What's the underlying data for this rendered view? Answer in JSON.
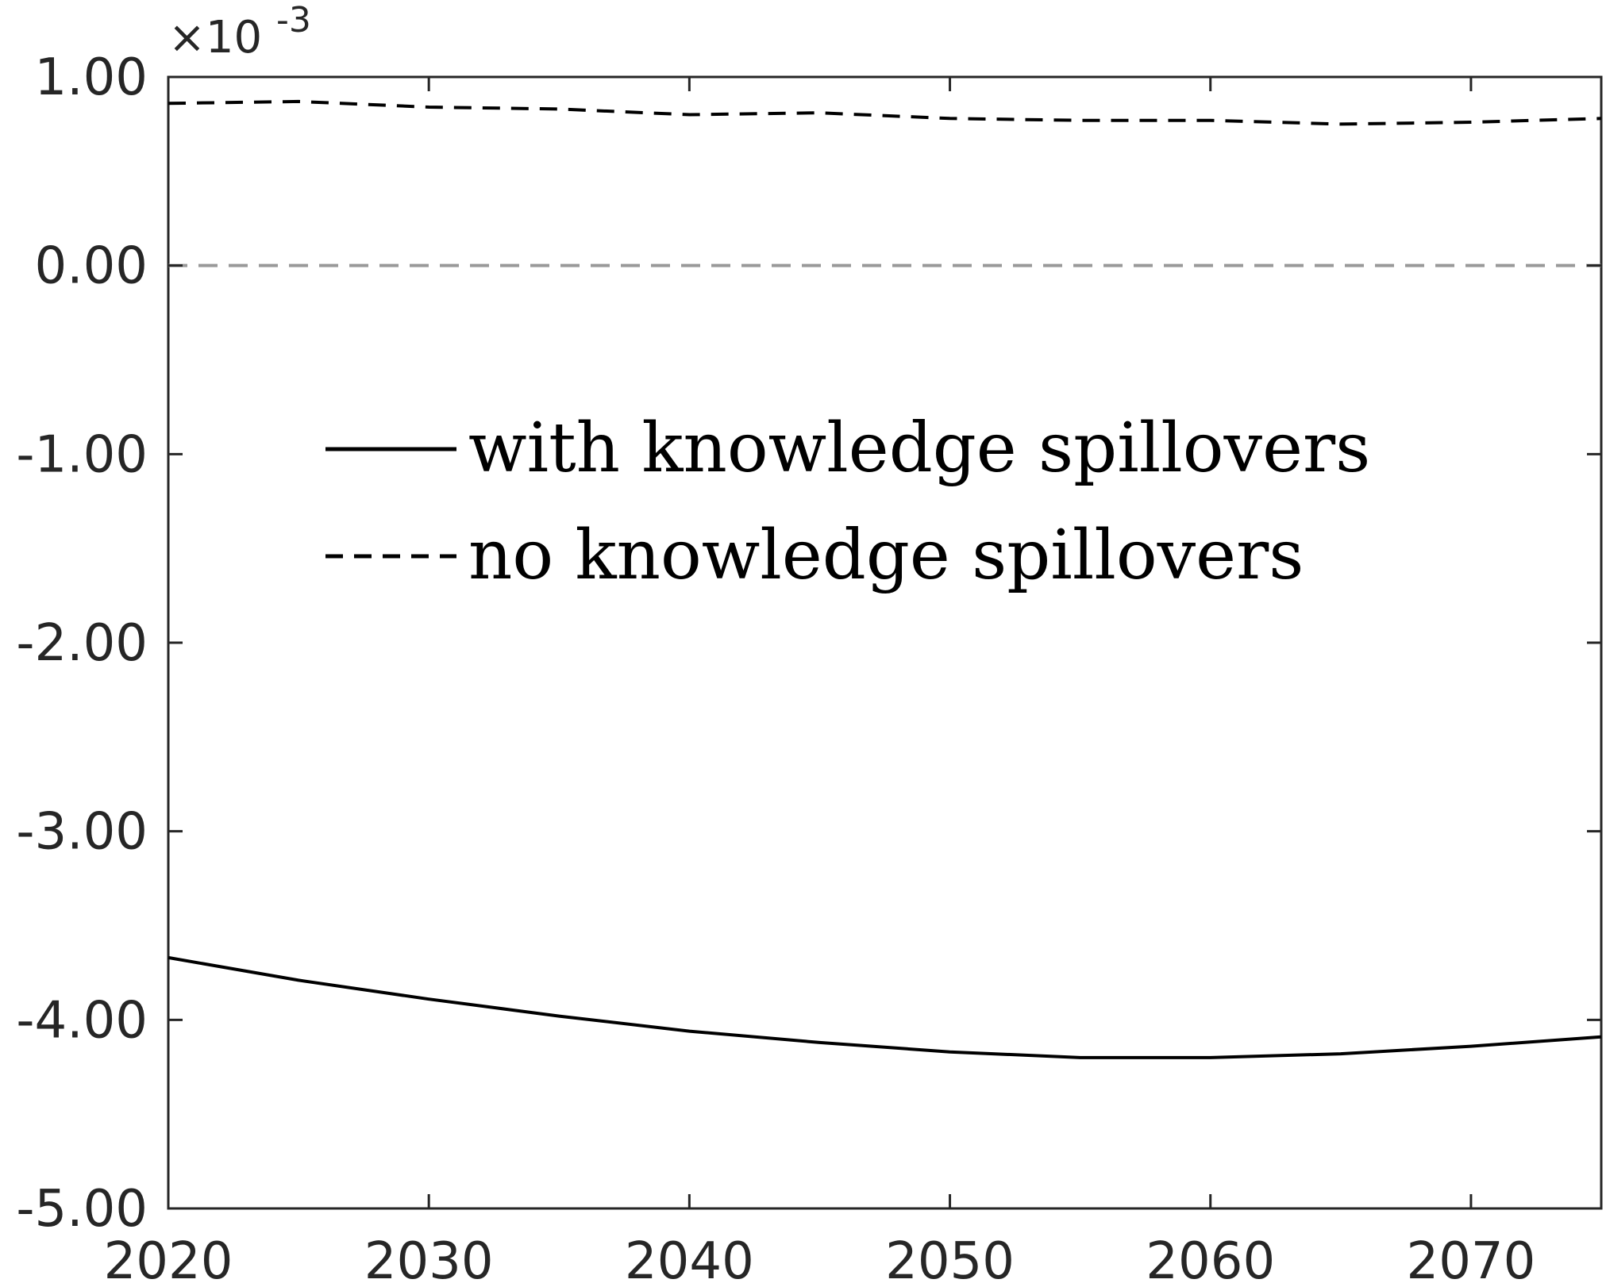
{
  "chart_data": {
    "type": "line",
    "title": "",
    "xlabel": "",
    "ylabel": "",
    "y_exponent_label": "×10",
    "y_exponent_power": "-3",
    "xlim": [
      2020,
      2075
    ],
    "ylim": [
      -5.0,
      1.0
    ],
    "x_ticks": [
      2020,
      2030,
      2040,
      2050,
      2060,
      2070
    ],
    "x_tick_labels": [
      "2020",
      "2030",
      "2040",
      "2050",
      "2060",
      "2070"
    ],
    "y_ticks": [
      1.0,
      0.0,
      -1.0,
      -2.0,
      -3.0,
      -4.0,
      -5.0
    ],
    "y_tick_labels": [
      "1.00",
      "0.00",
      "-1.00",
      "-2.00",
      "-3.00",
      "-4.00",
      "-5.00"
    ],
    "grid": false,
    "legend_position": "center",
    "reference_line": {
      "y": 0.0,
      "color": "#999999",
      "style": "dashed"
    },
    "series": [
      {
        "name": "with knowledge spillovers",
        "style": "solid",
        "color": "#000000",
        "x": [
          2020,
          2025,
          2030,
          2035,
          2040,
          2045,
          2050,
          2055,
          2060,
          2065,
          2070,
          2075
        ],
        "y": [
          -3.67,
          -3.79,
          -3.89,
          -3.98,
          -4.06,
          -4.12,
          -4.17,
          -4.2,
          -4.2,
          -4.18,
          -4.14,
          -4.09
        ]
      },
      {
        "name": "no knowledge spillovers",
        "style": "dashed",
        "color": "#000000",
        "x": [
          2020,
          2025,
          2030,
          2035,
          2040,
          2045,
          2050,
          2055,
          2060,
          2065,
          2070,
          2075
        ],
        "y": [
          0.86,
          0.87,
          0.84,
          0.83,
          0.8,
          0.81,
          0.78,
          0.77,
          0.77,
          0.75,
          0.76,
          0.78
        ]
      }
    ]
  }
}
